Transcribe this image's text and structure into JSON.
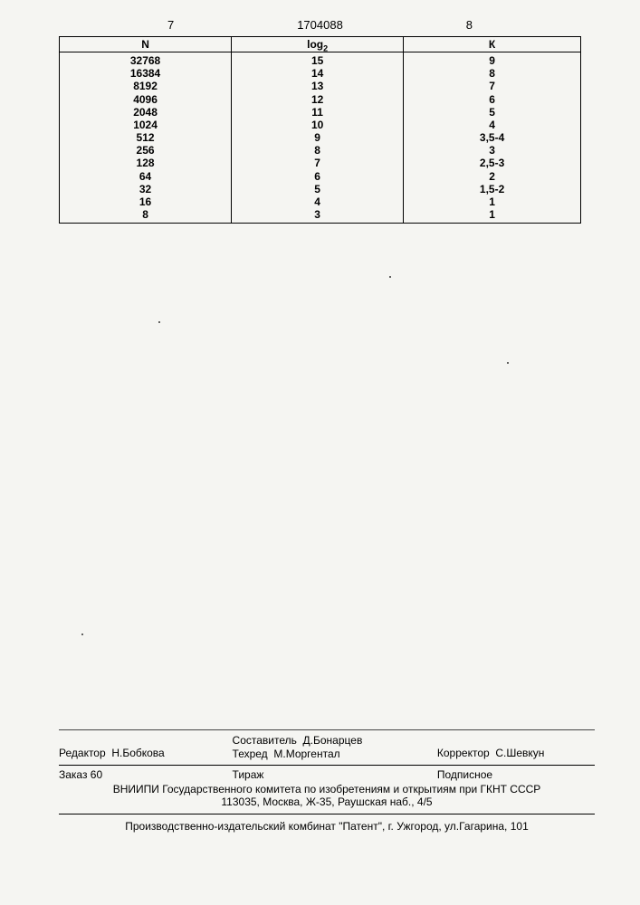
{
  "header": {
    "left_num": "7",
    "doc_number": "1704088",
    "right_num": "8"
  },
  "table": {
    "columns": {
      "n": "N",
      "log": "log",
      "log_sub": "2",
      "k": "К"
    },
    "rows": [
      {
        "n": "32768",
        "log": "15",
        "k": "9"
      },
      {
        "n": "16384",
        "log": "14",
        "k": "8"
      },
      {
        "n": "8192",
        "log": "13",
        "k": "7"
      },
      {
        "n": "4096",
        "log": "12",
        "k": "6"
      },
      {
        "n": "2048",
        "log": "11",
        "k": "5"
      },
      {
        "n": "1024",
        "log": "10",
        "k": "4"
      },
      {
        "n": "512",
        "log": "9",
        "k": "3,5-4"
      },
      {
        "n": "256",
        "log": "8",
        "k": "3"
      },
      {
        "n": "128",
        "log": "7",
        "k": "2,5-3"
      },
      {
        "n": "64",
        "log": "6",
        "k": "2"
      },
      {
        "n": "32",
        "log": "5",
        "k": "1,5-2"
      },
      {
        "n": "16",
        "log": "4",
        "k": "1"
      },
      {
        "n": "8",
        "log": "3",
        "k": "1"
      }
    ]
  },
  "footer": {
    "editor_label": "Редактор",
    "editor_name": "Н.Бобкова",
    "compiler_label": "Составитель",
    "compiler_name": "Д.Бонарцев",
    "techred_label": "Техред",
    "techred_name": "М.Моргентал",
    "corrector_label": "Корректор",
    "corrector_name": "С.Шевкун",
    "order": "Заказ 60",
    "tirazh": "Тираж",
    "subscribed": "Подписное",
    "institute_line1": "ВНИИПИ Государственного комитета по изобретениям и открытиям при ГКНТ СССР",
    "institute_line2": "113035, Москва, Ж-35, Раушская наб., 4/5",
    "publisher": "Производственно-издательский комбинат \"Патент\", г. Ужгород, ул.Гагарина, 101"
  }
}
